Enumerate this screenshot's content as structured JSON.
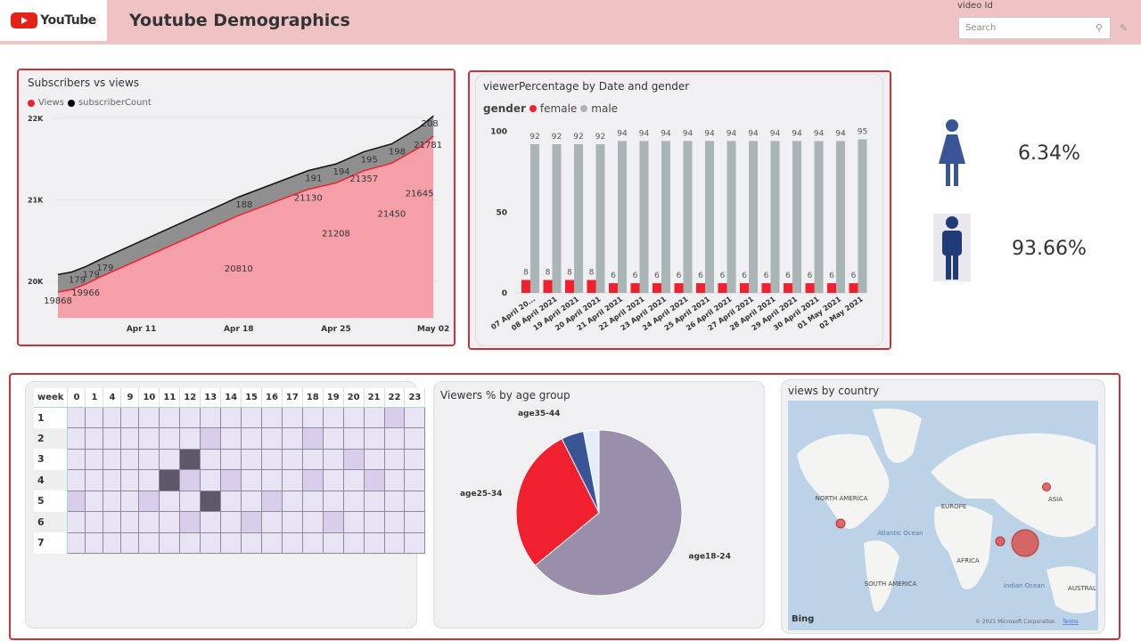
{
  "header": {
    "logo_text": "YouTube",
    "title": "Youtube Demographics",
    "filter_label": "video Id",
    "search_placeholder": "Search"
  },
  "colors": {
    "accent_red": "#f0202e",
    "male_gray": "#a9b4b5",
    "header_pink": "#efc3c3",
    "dark_cell": "#5e586b",
    "light_cell": "#d8cdeb"
  },
  "gender_stats": {
    "female_pct": "6.34%",
    "male_pct": "93.66%"
  },
  "chart_data": [
    {
      "type": "area",
      "title": "Subscribers vs views",
      "legend": [
        "Views",
        "subscriberCount"
      ],
      "ylim": [
        19600,
        22000
      ],
      "yticks": [
        "20K",
        "21K",
        "22K"
      ],
      "ytick_values": [
        20000,
        21000,
        22000
      ],
      "xticks": [
        "Apr 11",
        "Apr 18",
        "Apr 25",
        "May 02"
      ],
      "xtick_days": [
        6,
        13,
        20,
        27
      ],
      "x_days": [
        0,
        1,
        2,
        3,
        13,
        18,
        20,
        22,
        24,
        26,
        27
      ],
      "views": [
        19868,
        19900,
        19966,
        20050,
        20810,
        21130,
        21208,
        21357,
        21450,
        21645,
        21781
      ],
      "subscribers": [
        179,
        179,
        179,
        179,
        188,
        191,
        194,
        195,
        198,
        205,
        208
      ],
      "view_labels": [
        "19868",
        "",
        "19966",
        "",
        "20810",
        "21130",
        "21208",
        "21357",
        "21450",
        "21645",
        "21781"
      ],
      "sub_labels": [
        "",
        "179",
        "179",
        "179",
        "188",
        "191",
        "194",
        "195",
        "198",
        "",
        "208"
      ]
    },
    {
      "type": "bar",
      "title": "viewerPercentage by Date and gender",
      "legend_title": "gender",
      "legend": [
        "female",
        "male"
      ],
      "ylim": [
        0,
        100
      ],
      "yticks": [
        "0",
        "50",
        "100"
      ],
      "categories": [
        "07 April 20...",
        "08 April 2021",
        "19 April 2021",
        "20 April 2021",
        "21 April 2021",
        "22 April 2021",
        "23 April 2021",
        "24 April 2021",
        "25 April 2021",
        "26 April 2021",
        "27 April 2021",
        "28 April 2021",
        "29 April 2021",
        "30 April 2021",
        "01 May 2021",
        "02 May 2021"
      ],
      "series": [
        {
          "name": "female",
          "values": [
            8,
            8,
            8,
            8,
            6,
            6,
            6,
            6,
            6,
            6,
            6,
            6,
            6,
            6,
            6,
            6
          ]
        },
        {
          "name": "male",
          "values": [
            92,
            92,
            92,
            92,
            94,
            94,
            94,
            94,
            94,
            94,
            94,
            94,
            94,
            94,
            94,
            95
          ]
        }
      ]
    },
    {
      "type": "heatmap",
      "header": "week",
      "columns": [
        "0",
        "1",
        "4",
        "9",
        "10",
        "11",
        "12",
        "13",
        "14",
        "15",
        "16",
        "17",
        "18",
        "19",
        "20",
        "21",
        "22",
        "23"
      ],
      "rows": [
        "1",
        "2",
        "3",
        "4",
        "5",
        "6",
        "7"
      ],
      "levels": [
        [
          0,
          0,
          0,
          0,
          0,
          0,
          0,
          0,
          0,
          0,
          0,
          0,
          0,
          0,
          0,
          0,
          1,
          0
        ],
        [
          0,
          0,
          0,
          0,
          0,
          0,
          0,
          1,
          0,
          0,
          0,
          0,
          1,
          0,
          0,
          0,
          0,
          0
        ],
        [
          0,
          0,
          0,
          0,
          0,
          0,
          2,
          0,
          0,
          0,
          0,
          0,
          0,
          0,
          1,
          0,
          0,
          0
        ],
        [
          0,
          0,
          0,
          0,
          0,
          2,
          1,
          0,
          1,
          0,
          0,
          0,
          1,
          0,
          0,
          1,
          0,
          0
        ],
        [
          1,
          0,
          0,
          0,
          1,
          0,
          0,
          2,
          0,
          0,
          1,
          0,
          0,
          0,
          0,
          0,
          0,
          0
        ],
        [
          0,
          0,
          0,
          0,
          0,
          0,
          1,
          0,
          0,
          1,
          0,
          0,
          0,
          1,
          0,
          0,
          0,
          0
        ],
        [
          0,
          0,
          0,
          0,
          0,
          0,
          0,
          0,
          0,
          0,
          0,
          0,
          0,
          0,
          0,
          0,
          0,
          0
        ]
      ]
    },
    {
      "type": "pie",
      "title": "Viewers % by age group",
      "slices": [
        {
          "label": "age18-24",
          "value": 64,
          "color": "#9a8fab"
        },
        {
          "label": "age25-34",
          "value": 28.6,
          "color": "#f0202e"
        },
        {
          "label": "age35-44",
          "value": 4.4,
          "color": "#3a5595"
        },
        {
          "label": "",
          "value": 3,
          "color": "#e3eef6"
        }
      ]
    }
  ],
  "map": {
    "title": "views by country",
    "labels": [
      "NORTH AMERICA",
      "EUROPE",
      "ASIA",
      "AFRICA",
      "SOUTH AMERICA",
      "AUSTRAL",
      "Atlantic Ocean",
      "Indian Ocean"
    ],
    "attribution": "© 2021 Microsoft Corporation",
    "terms": "Terms",
    "brand": "Bing"
  }
}
